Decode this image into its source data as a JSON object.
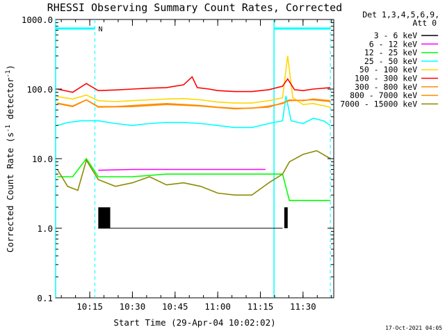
{
  "chart_data": {
    "type": "line",
    "title": "RHESSI Observing Summary Count Rates, Corrected",
    "xlabel": "Start Time (29-Apr-04 10:02:02)",
    "ylabel_main": "Corrected Count Rate (s",
    "ylabel_sup1": "-1",
    "ylabel_mid": " detector",
    "ylabel_sup2": "-1",
    "ylabel_end": ")",
    "yscale": "log",
    "ylim": [
      0.1,
      1000
    ],
    "xlim_minutes": [
      10.05,
      11.68
    ],
    "y_ticks": [
      {
        "v": 1000,
        "label": "1000.0"
      },
      {
        "v": 100,
        "label": "100.0"
      },
      {
        "v": 10,
        "label": "10.0"
      },
      {
        "v": 1,
        "label": "1.0"
      },
      {
        "v": 0.1,
        "label": "0.1"
      }
    ],
    "x_ticks": [
      {
        "t": 10.25,
        "label": "10:15"
      },
      {
        "t": 10.5,
        "label": "10:30"
      },
      {
        "t": 10.75,
        "label": "10:45"
      },
      {
        "t": 11.0,
        "label": "11:00"
      },
      {
        "t": 11.25,
        "label": "11:15"
      },
      {
        "t": 11.5,
        "label": "11:30"
      }
    ],
    "legend_header": [
      "Det 1,3,4,5,6,9,",
      "Att 0"
    ],
    "legend_position": "right",
    "series": [
      {
        "name": "3 - 6 keV",
        "color": "#000000",
        "points": [
          [
            10.3,
            1.0
          ],
          [
            10.5,
            1.0
          ],
          [
            10.7,
            1.0
          ],
          [
            10.9,
            1.0
          ],
          [
            11.1,
            1.0
          ],
          [
            11.27,
            1.0
          ],
          [
            11.38,
            1.0
          ]
        ]
      },
      {
        "name": "6 - 12 keV",
        "color": "#ff00ff",
        "points": [
          [
            10.3,
            6.8
          ],
          [
            10.5,
            7.0
          ],
          [
            10.7,
            7.0
          ],
          [
            10.9,
            7.0
          ],
          [
            11.1,
            7.0
          ],
          [
            11.28,
            7.0
          ]
        ]
      },
      {
        "name": "12 - 25 keV",
        "color": "#00ff00",
        "points": [
          [
            10.06,
            5.5
          ],
          [
            10.15,
            5.5
          ],
          [
            10.23,
            10
          ],
          [
            10.3,
            5.5
          ],
          [
            10.5,
            5.5
          ],
          [
            10.7,
            6.0
          ],
          [
            10.9,
            6.0
          ],
          [
            11.1,
            6.0
          ],
          [
            11.28,
            6.0
          ],
          [
            11.38,
            6.0
          ],
          [
            11.42,
            2.5
          ],
          [
            11.55,
            2.5
          ],
          [
            11.66,
            2.5
          ]
        ]
      },
      {
        "name": "25 - 50 keV",
        "color": "#00ffff",
        "points": [
          [
            10.06,
            30
          ],
          [
            10.12,
            33
          ],
          [
            10.2,
            35
          ],
          [
            10.3,
            35
          ],
          [
            10.4,
            32
          ],
          [
            10.5,
            30
          ],
          [
            10.6,
            32
          ],
          [
            10.7,
            33
          ],
          [
            10.8,
            33
          ],
          [
            10.9,
            32
          ],
          [
            11.0,
            30
          ],
          [
            11.1,
            28
          ],
          [
            11.2,
            28
          ],
          [
            11.3,
            32
          ],
          [
            11.38,
            35
          ],
          [
            11.4,
            80
          ],
          [
            11.43,
            35
          ],
          [
            11.5,
            32
          ],
          [
            11.56,
            38
          ],
          [
            11.62,
            35
          ],
          [
            11.66,
            30
          ]
        ]
      },
      {
        "name": "50 - 100 keV",
        "color": "#ffd700",
        "points": [
          [
            10.06,
            78
          ],
          [
            10.15,
            72
          ],
          [
            10.23,
            82
          ],
          [
            10.3,
            68
          ],
          [
            10.4,
            66
          ],
          [
            10.5,
            68
          ],
          [
            10.6,
            70
          ],
          [
            10.7,
            72
          ],
          [
            10.8,
            73
          ],
          [
            10.9,
            70
          ],
          [
            11.0,
            65
          ],
          [
            11.1,
            63
          ],
          [
            11.2,
            63
          ],
          [
            11.3,
            68
          ],
          [
            11.38,
            75
          ],
          [
            11.41,
            300
          ],
          [
            11.44,
            75
          ],
          [
            11.5,
            60
          ],
          [
            11.56,
            62
          ],
          [
            11.66,
            55
          ]
        ]
      },
      {
        "name": "100 - 300 keV",
        "color": "#ff0000",
        "points": [
          [
            10.06,
            100
          ],
          [
            10.15,
            90
          ],
          [
            10.23,
            120
          ],
          [
            10.3,
            95
          ],
          [
            10.4,
            97
          ],
          [
            10.5,
            100
          ],
          [
            10.6,
            103
          ],
          [
            10.7,
            105
          ],
          [
            10.8,
            115
          ],
          [
            10.85,
            150
          ],
          [
            10.88,
            105
          ],
          [
            10.95,
            100
          ],
          [
            11.0,
            95
          ],
          [
            11.1,
            92
          ],
          [
            11.2,
            92
          ],
          [
            11.3,
            98
          ],
          [
            11.38,
            110
          ],
          [
            11.41,
            140
          ],
          [
            11.45,
            98
          ],
          [
            11.5,
            95
          ],
          [
            11.56,
            100
          ],
          [
            11.66,
            105
          ]
        ]
      },
      {
        "name": "300 - 800 keV",
        "color": "#ff8c00",
        "points": [
          [
            10.06,
            63
          ],
          [
            10.15,
            57
          ],
          [
            10.23,
            70
          ],
          [
            10.3,
            56
          ],
          [
            10.4,
            56
          ],
          [
            10.5,
            58
          ],
          [
            10.6,
            60
          ],
          [
            10.7,
            62
          ],
          [
            10.8,
            60
          ],
          [
            10.9,
            58
          ],
          [
            11.0,
            55
          ],
          [
            11.1,
            53
          ],
          [
            11.2,
            53
          ],
          [
            11.3,
            57
          ],
          [
            11.38,
            62
          ],
          [
            11.42,
            70
          ],
          [
            11.5,
            68
          ],
          [
            11.56,
            72
          ],
          [
            11.66,
            68
          ]
        ]
      },
      {
        "name": "800 - 7000 keV",
        "color": "#ff8c00",
        "points": [
          [
            10.06,
            62
          ],
          [
            10.15,
            56
          ],
          [
            10.23,
            70
          ],
          [
            10.3,
            55
          ],
          [
            10.5,
            56
          ],
          [
            10.7,
            60
          ],
          [
            10.9,
            57
          ],
          [
            11.1,
            52
          ],
          [
            11.3,
            55
          ],
          [
            11.42,
            68
          ],
          [
            11.56,
            70
          ],
          [
            11.66,
            66
          ]
        ]
      },
      {
        "name": "7000 - 15000 keV",
        "color": "#8b8b00",
        "points": [
          [
            10.06,
            7.0
          ],
          [
            10.12,
            4.0
          ],
          [
            10.18,
            3.5
          ],
          [
            10.23,
            9.5
          ],
          [
            10.3,
            5.0
          ],
          [
            10.4,
            4.0
          ],
          [
            10.5,
            4.5
          ],
          [
            10.6,
            5.5
          ],
          [
            10.7,
            4.2
          ],
          [
            10.8,
            4.5
          ],
          [
            10.9,
            4.0
          ],
          [
            11.0,
            3.2
          ],
          [
            11.1,
            3.0
          ],
          [
            11.2,
            3.0
          ],
          [
            11.3,
            4.5
          ],
          [
            11.38,
            6.0
          ],
          [
            11.42,
            9.0
          ],
          [
            11.5,
            11.5
          ],
          [
            11.58,
            13.0
          ],
          [
            11.66,
            10.0
          ]
        ]
      }
    ],
    "markers": {
      "band_label": "N",
      "bands_y": 1000,
      "solid_lines": [
        10.05,
        11.33
      ],
      "dashed_lines": [
        10.28,
        11.66
      ]
    },
    "attenuator_segments": [
      [
        10.3,
        10.37
      ],
      [
        11.39,
        11.41
      ]
    ],
    "timestamp": "17-Oct-2021 04:05"
  }
}
